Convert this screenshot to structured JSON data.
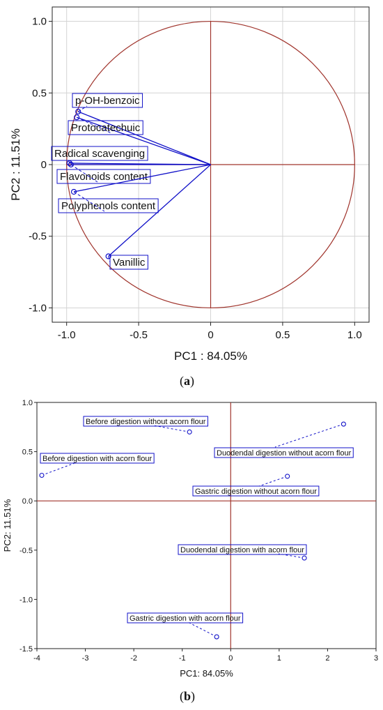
{
  "chart_data": [
    {
      "type": "scatter",
      "panel": "(a)",
      "xlabel": "PC1 : 84.05%",
      "ylabel": "PC2 : 11.51%",
      "xlim": [
        -1.1,
        1.1
      ],
      "ylim": [
        -1.1,
        1.1
      ],
      "xticks": [
        -1.0,
        -0.5,
        0,
        0.5,
        1.0
      ],
      "yticks": [
        -1.0,
        -0.5,
        0,
        0.5,
        1.0
      ],
      "xtick_labels": [
        "-1.0",
        "-0.5",
        "0",
        "0.5",
        "1.0"
      ],
      "ytick_labels": [
        "-1.0",
        "-0.5",
        "0",
        "0.5",
        "1.0"
      ],
      "grid": true,
      "unit_circle": true,
      "colors": {
        "circle": "#a0342c",
        "axes_cross": "#a0342c",
        "vectors": "#1010c8",
        "points": "#1010c8",
        "grid": "#d4d4d4"
      },
      "points": [
        {
          "name": "p-OH-benzoic",
          "x": -0.92,
          "y": 0.37
        },
        {
          "name": "Protocatechuic",
          "x": -0.93,
          "y": 0.33
        },
        {
          "name": "Radical scavenging",
          "x": -0.98,
          "y": 0.01
        },
        {
          "name": "Flavonoids content",
          "x": -0.97,
          "y": 0.0
        },
        {
          "name": "Polyphenols content",
          "x": -0.95,
          "y": -0.19
        },
        {
          "name": "Vanillic",
          "x": -0.71,
          "y": -0.64
        }
      ]
    },
    {
      "type": "scatter",
      "panel": "(b)",
      "xlabel": "PC1: 84.05%",
      "ylabel": "PC2: 11.51%",
      "xlim": [
        -4,
        3
      ],
      "ylim": [
        -1.5,
        1.0
      ],
      "xticks": [
        -4,
        -3,
        -2,
        -1,
        0,
        1,
        2,
        3
      ],
      "yticks": [
        -1.5,
        -1.0,
        -0.5,
        0.0,
        0.5,
        1.0
      ],
      "xtick_labels": [
        "-4",
        "-3",
        "-2",
        "-1",
        "0",
        "1",
        "2",
        "3"
      ],
      "ytick_labels": [
        "-1.5",
        "-1.0",
        "-0.5",
        "0.0",
        "0.5",
        "1.0"
      ],
      "grid": false,
      "colors": {
        "axes_cross": "#a0342c",
        "points": "#1010c8",
        "leaders": "#1010c8"
      },
      "points": [
        {
          "name": "Before digestion without acorn flour",
          "x": -0.85,
          "y": 0.7
        },
        {
          "name": "Before digestion with acorn flour",
          "x": -3.9,
          "y": 0.26
        },
        {
          "name": "Duodendal digestion without acorn flour",
          "x": 2.33,
          "y": 0.78
        },
        {
          "name": "Gastric digestion without acorn flour",
          "x": 1.17,
          "y": 0.25
        },
        {
          "name": "Duodendal digestion with acorn flour",
          "x": 1.52,
          "y": -0.58
        },
        {
          "name": "Gastric digestion with acorn flour",
          "x": -0.29,
          "y": -1.38
        }
      ]
    }
  ],
  "captions": {
    "a_letter": "a",
    "b_letter": "b"
  }
}
